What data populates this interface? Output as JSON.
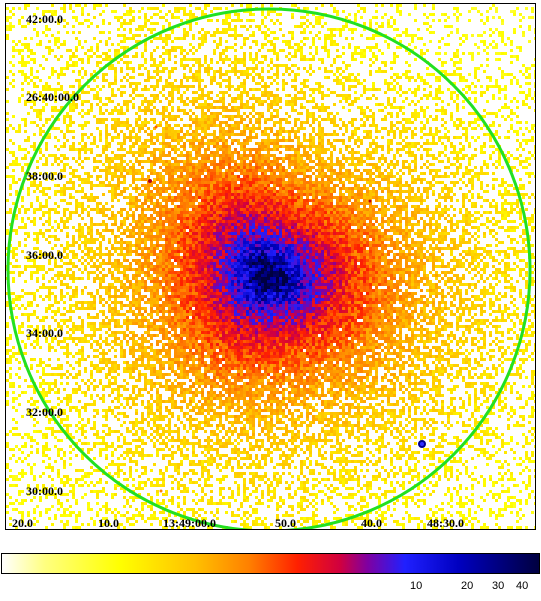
{
  "image": {
    "subject": "",
    "region_color": "#22e022",
    "colormap": [
      "#ffffff",
      "#ffff80",
      "#ffff00",
      "#ffc000",
      "#ff8000",
      "#ff2000",
      "#d00040",
      "#8000a0",
      "#2020ff",
      "#0000c0",
      "#000040"
    ]
  },
  "y_axis": {
    "labels": [
      "42:00.0",
      "26:40:00.0",
      "38:00.0",
      "36:00.0",
      "34:00.0",
      "32:00.0",
      "30:00.0"
    ]
  },
  "x_axis": {
    "labels": [
      "20.0",
      "10.0",
      "13:49:00.0",
      "50.0",
      "40.0",
      "48:30.0"
    ]
  },
  "colorbar": {
    "labels": [
      "10",
      "20",
      "30",
      "40"
    ]
  }
}
